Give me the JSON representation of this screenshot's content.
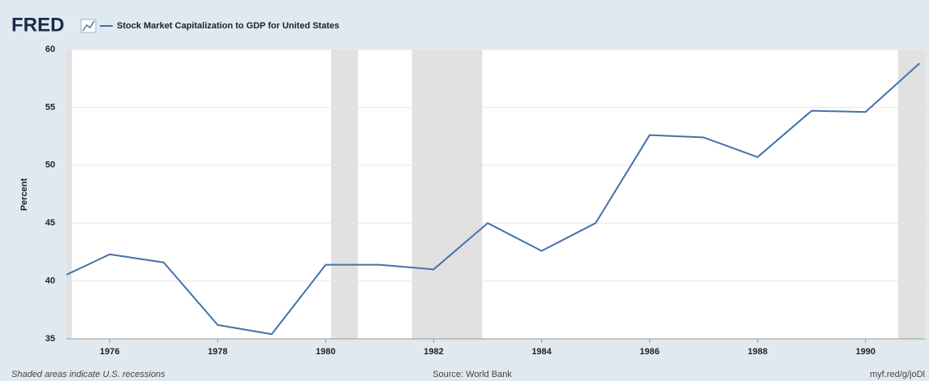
{
  "chart_data": {
    "type": "line",
    "logo": "FRED",
    "ylabel": "Percent",
    "note": "Shaded areas indicate U.S. recessions",
    "source": "Source: World Bank",
    "link": "myf.red/g/joDl",
    "x": [
      1975,
      1976,
      1977,
      1978,
      1979,
      1980,
      1981,
      1982,
      1983,
      1984,
      1985,
      1986,
      1987,
      1988,
      1989,
      1990,
      1991
    ],
    "series": [
      {
        "name": "Stock Market Capitalization to GDP for United States",
        "color": "#4572a7",
        "values": [
          40.1,
          42.3,
          41.6,
          36.2,
          35.4,
          41.4,
          41.4,
          41.0,
          45.0,
          42.6,
          45.0,
          52.6,
          52.4,
          50.7,
          54.7,
          54.6,
          58.8
        ]
      }
    ],
    "recessions": [
      [
        1973.9,
        1975.3
      ],
      [
        1980.1,
        1980.6
      ],
      [
        1981.6,
        1982.9
      ],
      [
        1990.6,
        1991.2
      ]
    ],
    "recession_color": "#e1e1e1",
    "xlim": [
      1975.2,
      1991.1
    ],
    "xticks": [
      1976,
      1978,
      1980,
      1982,
      1984,
      1986,
      1988,
      1990
    ],
    "ylim": [
      35,
      60
    ],
    "yticks": [
      35,
      40,
      45,
      50,
      55,
      60
    ],
    "grid": true
  }
}
